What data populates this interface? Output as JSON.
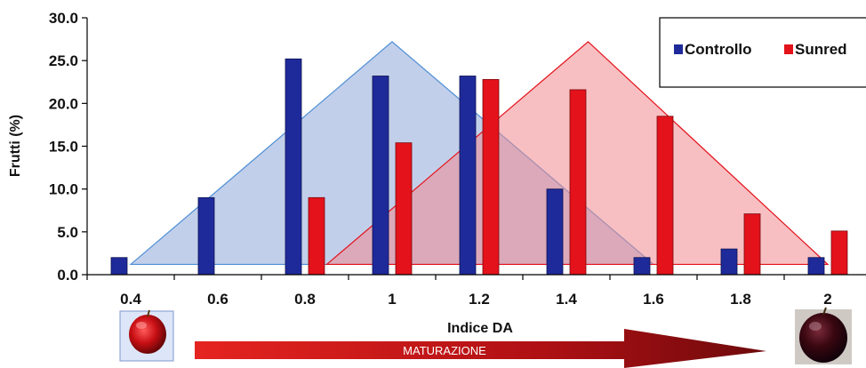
{
  "chart_data": {
    "type": "bar",
    "ylabel": "Frutti (%)",
    "xlabel": "Indice DA",
    "ylim": [
      0,
      30
    ],
    "yticks": [
      "0.0",
      "5.0",
      "10.0",
      "15.0",
      "20.0",
      "25.0",
      "30.0"
    ],
    "categories": [
      "0.4",
      "0.6",
      "0.8",
      "1",
      "1.2",
      "1.4",
      "1.6",
      "1.8",
      "2"
    ],
    "series": [
      {
        "name": "Controllo",
        "color": "#1f2a9a",
        "values": [
          2.0,
          9.0,
          25.2,
          23.2,
          23.2,
          10.0,
          2.0,
          3.0,
          2.0
        ]
      },
      {
        "name": "Sunred",
        "color": "#e3121b",
        "values": [
          null,
          null,
          9.0,
          15.4,
          22.8,
          21.6,
          18.5,
          7.1,
          5.1
        ]
      }
    ],
    "distributions": [
      {
        "series": "Controllo",
        "color": "#8fa7d8",
        "stroke": "#4e8fd6",
        "start": 0.4,
        "peak": 1.0,
        "end": 1.6,
        "peak_value": 27.2,
        "base_value": 1.2
      },
      {
        "series": "Sunred",
        "color": "#f08a8f",
        "stroke": "#e3121b",
        "start": 0.85,
        "peak": 1.45,
        "end": 2.0,
        "peak_value": 27.2,
        "base_value": 1.2
      }
    ],
    "legend": {
      "position": "top-right"
    },
    "grid": false
  },
  "annotation": {
    "arrow_label": "MATURAZIONE",
    "arrow_color": "#e01a1a"
  },
  "icons": {
    "left": "unripe-apple-icon",
    "right": "ripe-apple-icon"
  }
}
